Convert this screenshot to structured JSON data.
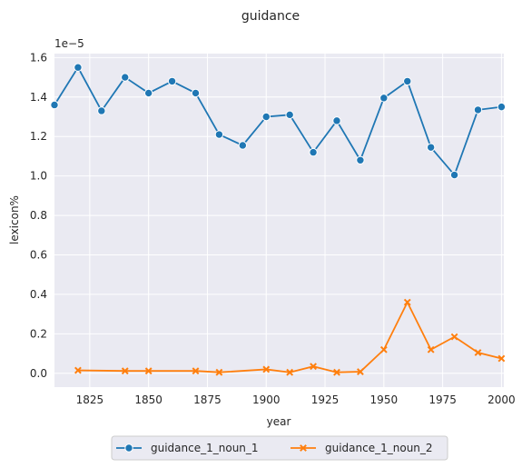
{
  "chart_data": {
    "type": "line",
    "title": "guidance",
    "xlabel": "year",
    "ylabel": "lexicon%",
    "y_offset_label": "1e−5",
    "xlim": [
      1810,
      2001
    ],
    "ylim": [
      -0.07,
      1.62
    ],
    "x_ticks": [
      1825,
      1850,
      1875,
      1900,
      1925,
      1950,
      1975,
      2000
    ],
    "y_ticks": [
      0.0,
      0.2,
      0.4,
      0.6,
      0.8,
      1.0,
      1.2,
      1.4,
      1.6
    ],
    "y_tick_labels": [
      "0.0",
      "0.2",
      "0.4",
      "0.6",
      "0.8",
      "1.0",
      "1.2",
      "1.4",
      "1.6"
    ],
    "grid": true,
    "legend_placement": "bottom-center",
    "series": [
      {
        "name": "guidance_1_noun_1",
        "color": "#1f77b4",
        "marker": "circle",
        "x": [
          1810,
          1820,
          1830,
          1840,
          1850,
          1860,
          1870,
          1880,
          1890,
          1900,
          1910,
          1920,
          1930,
          1940,
          1950,
          1960,
          1970,
          1980,
          1990,
          2000
        ],
        "values": [
          1.36,
          1.55,
          1.33,
          1.5,
          1.42,
          1.48,
          1.42,
          1.21,
          1.155,
          1.3,
          1.31,
          1.12,
          1.28,
          1.08,
          1.395,
          1.48,
          1.145,
          1.005,
          1.335,
          1.35
        ]
      },
      {
        "name": "guidance_1_noun_2",
        "color": "#ff7f0e",
        "marker": "x",
        "x": [
          1820,
          1840,
          1850,
          1870,
          1880,
          1900,
          1910,
          1920,
          1930,
          1940,
          1950,
          1960,
          1970,
          1980,
          1990,
          2000
        ],
        "values": [
          0.015,
          0.012,
          0.012,
          0.012,
          0.005,
          0.02,
          0.005,
          0.035,
          0.005,
          0.008,
          0.12,
          0.36,
          0.12,
          0.185,
          0.105,
          0.075
        ]
      }
    ]
  }
}
